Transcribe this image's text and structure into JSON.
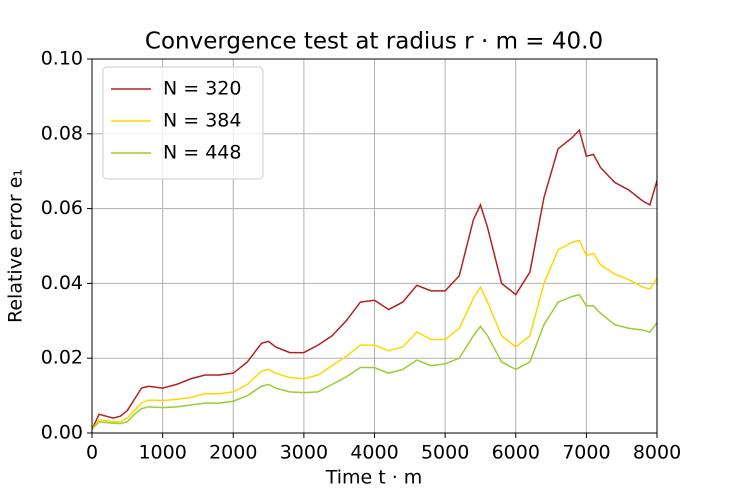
{
  "chart_data": {
    "type": "line",
    "title": "Convergence test at radius r · m = 40.0",
    "x_label": "Time t · m",
    "y_label": "Relative error e₁",
    "x": [
      0,
      100,
      200,
      300,
      400,
      500,
      600,
      700,
      800,
      1000,
      1200,
      1400,
      1600,
      1800,
      2000,
      2200,
      2400,
      2500,
      2600,
      2800,
      3000,
      3200,
      3400,
      3600,
      3800,
      4000,
      4200,
      4400,
      4600,
      4800,
      5000,
      5200,
      5400,
      5500,
      5600,
      5800,
      6000,
      6200,
      6400,
      6600,
      6800,
      6900,
      7000,
      7100,
      7200,
      7400,
      7600,
      7800,
      7900,
      8000
    ],
    "series": [
      {
        "name": "N = 320",
        "color": "#b22222",
        "values": [
          0.001,
          0.005,
          0.0045,
          0.004,
          0.0045,
          0.006,
          0.009,
          0.012,
          0.0125,
          0.012,
          0.013,
          0.0145,
          0.0155,
          0.0155,
          0.016,
          0.019,
          0.024,
          0.0245,
          0.023,
          0.0215,
          0.0215,
          0.0235,
          0.026,
          0.03,
          0.035,
          0.0355,
          0.033,
          0.035,
          0.0395,
          0.038,
          0.038,
          0.042,
          0.057,
          0.061,
          0.055,
          0.04,
          0.037,
          0.043,
          0.063,
          0.076,
          0.079,
          0.081,
          0.074,
          0.0745,
          0.071,
          0.067,
          0.065,
          0.062,
          0.061,
          0.0675
        ]
      },
      {
        "name": "N = 384",
        "color": "#ffd700",
        "values": [
          0.001,
          0.0035,
          0.0033,
          0.003,
          0.003,
          0.004,
          0.006,
          0.008,
          0.0088,
          0.0087,
          0.009,
          0.0095,
          0.0105,
          0.0105,
          0.011,
          0.013,
          0.0165,
          0.017,
          0.016,
          0.0148,
          0.0145,
          0.0155,
          0.018,
          0.0205,
          0.0235,
          0.0235,
          0.022,
          0.023,
          0.027,
          0.025,
          0.025,
          0.028,
          0.036,
          0.039,
          0.035,
          0.026,
          0.023,
          0.026,
          0.04,
          0.049,
          0.051,
          0.0515,
          0.0475,
          0.048,
          0.045,
          0.0425,
          0.041,
          0.039,
          0.0385,
          0.0415
        ]
      },
      {
        "name": "N = 448",
        "color": "#9acd32",
        "values": [
          0.001,
          0.003,
          0.0028,
          0.0026,
          0.0025,
          0.003,
          0.005,
          0.0065,
          0.007,
          0.0068,
          0.007,
          0.0075,
          0.008,
          0.008,
          0.0085,
          0.01,
          0.0125,
          0.013,
          0.012,
          0.011,
          0.0108,
          0.011,
          0.013,
          0.015,
          0.0175,
          0.0175,
          0.016,
          0.017,
          0.0195,
          0.018,
          0.0185,
          0.02,
          0.026,
          0.0285,
          0.026,
          0.019,
          0.017,
          0.019,
          0.029,
          0.035,
          0.0365,
          0.037,
          0.034,
          0.034,
          0.032,
          0.029,
          0.028,
          0.0275,
          0.027,
          0.0295
        ]
      }
    ],
    "xlim": [
      0,
      8000
    ],
    "xticks": [
      0,
      1000,
      2000,
      3000,
      4000,
      5000,
      6000,
      7000,
      8000
    ],
    "ylim": [
      0,
      0.1
    ],
    "yticks": [
      {
        "value": 0,
        "label": "0.00"
      },
      {
        "value": 0.02,
        "label": "0.02"
      },
      {
        "value": 0.04,
        "label": "0.04"
      },
      {
        "value": 0.06,
        "label": "0.06"
      },
      {
        "value": 0.08,
        "label": "0.08"
      },
      {
        "value": 0.1,
        "label": "0.10"
      }
    ],
    "grid": true,
    "legend": "upper left"
  }
}
